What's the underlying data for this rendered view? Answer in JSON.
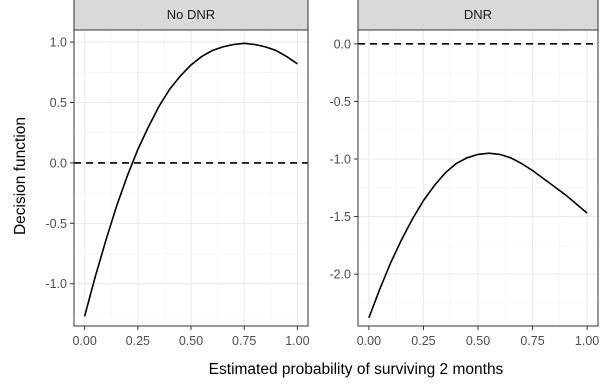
{
  "chart_data": {
    "type": "line",
    "xlabel": "Estimated probability of surviving 2 months",
    "ylabel": "Decision function",
    "x_ticks": [
      "0.00",
      "0.25",
      "0.50",
      "0.75",
      "1.00"
    ],
    "grid": true,
    "facets": [
      {
        "strip_label": "No DNR",
        "xlim": [
          -0.05,
          1.05
        ],
        "ylim": [
          -1.35,
          1.1
        ],
        "y_ticks": [
          -1.0,
          -0.5,
          0.0,
          0.5,
          1.0
        ],
        "y_tick_labels": [
          "-1.0",
          "-0.5",
          "0.0",
          "0.5",
          "1.0"
        ],
        "series": [
          {
            "style": "solid",
            "x": [
              0.0,
              0.05,
              0.1,
              0.15,
              0.2,
              0.25,
              0.3,
              0.35,
              0.4,
              0.45,
              0.5,
              0.55,
              0.6,
              0.65,
              0.7,
              0.75,
              0.8,
              0.85,
              0.9,
              0.95,
              1.0
            ],
            "y": [
              -1.27,
              -0.94,
              -0.64,
              -0.36,
              -0.11,
              0.11,
              0.3,
              0.47,
              0.61,
              0.72,
              0.81,
              0.88,
              0.93,
              0.96,
              0.98,
              0.99,
              0.98,
              0.96,
              0.93,
              0.88,
              0.82
            ]
          },
          {
            "style": "dashed",
            "x": [
              -0.05,
              1.05
            ],
            "y": [
              0.0,
              0.0
            ]
          }
        ]
      },
      {
        "strip_label": "DNR",
        "xlim": [
          -0.05,
          1.05
        ],
        "ylim": [
          -2.45,
          0.12
        ],
        "y_ticks": [
          -2.0,
          -1.5,
          -1.0,
          -0.5,
          0.0
        ],
        "y_tick_labels": [
          "-2.0",
          "-1.5",
          "-1.0",
          "-0.5",
          "0.0"
        ],
        "series": [
          {
            "style": "solid",
            "x": [
              0.0,
              0.05,
              0.1,
              0.15,
              0.2,
              0.25,
              0.3,
              0.35,
              0.4,
              0.45,
              0.5,
              0.55,
              0.6,
              0.65,
              0.7,
              0.75,
              0.8,
              0.85,
              0.9,
              0.95,
              1.0
            ],
            "y": [
              -2.38,
              -2.13,
              -1.9,
              -1.7,
              -1.52,
              -1.36,
              -1.23,
              -1.12,
              -1.04,
              -0.99,
              -0.96,
              -0.95,
              -0.96,
              -0.99,
              -1.04,
              -1.1,
              -1.17,
              -1.24,
              -1.31,
              -1.39,
              -1.47
            ]
          },
          {
            "style": "dashed",
            "x": [
              -0.05,
              1.05
            ],
            "y": [
              0.0,
              0.0
            ]
          }
        ]
      }
    ]
  }
}
